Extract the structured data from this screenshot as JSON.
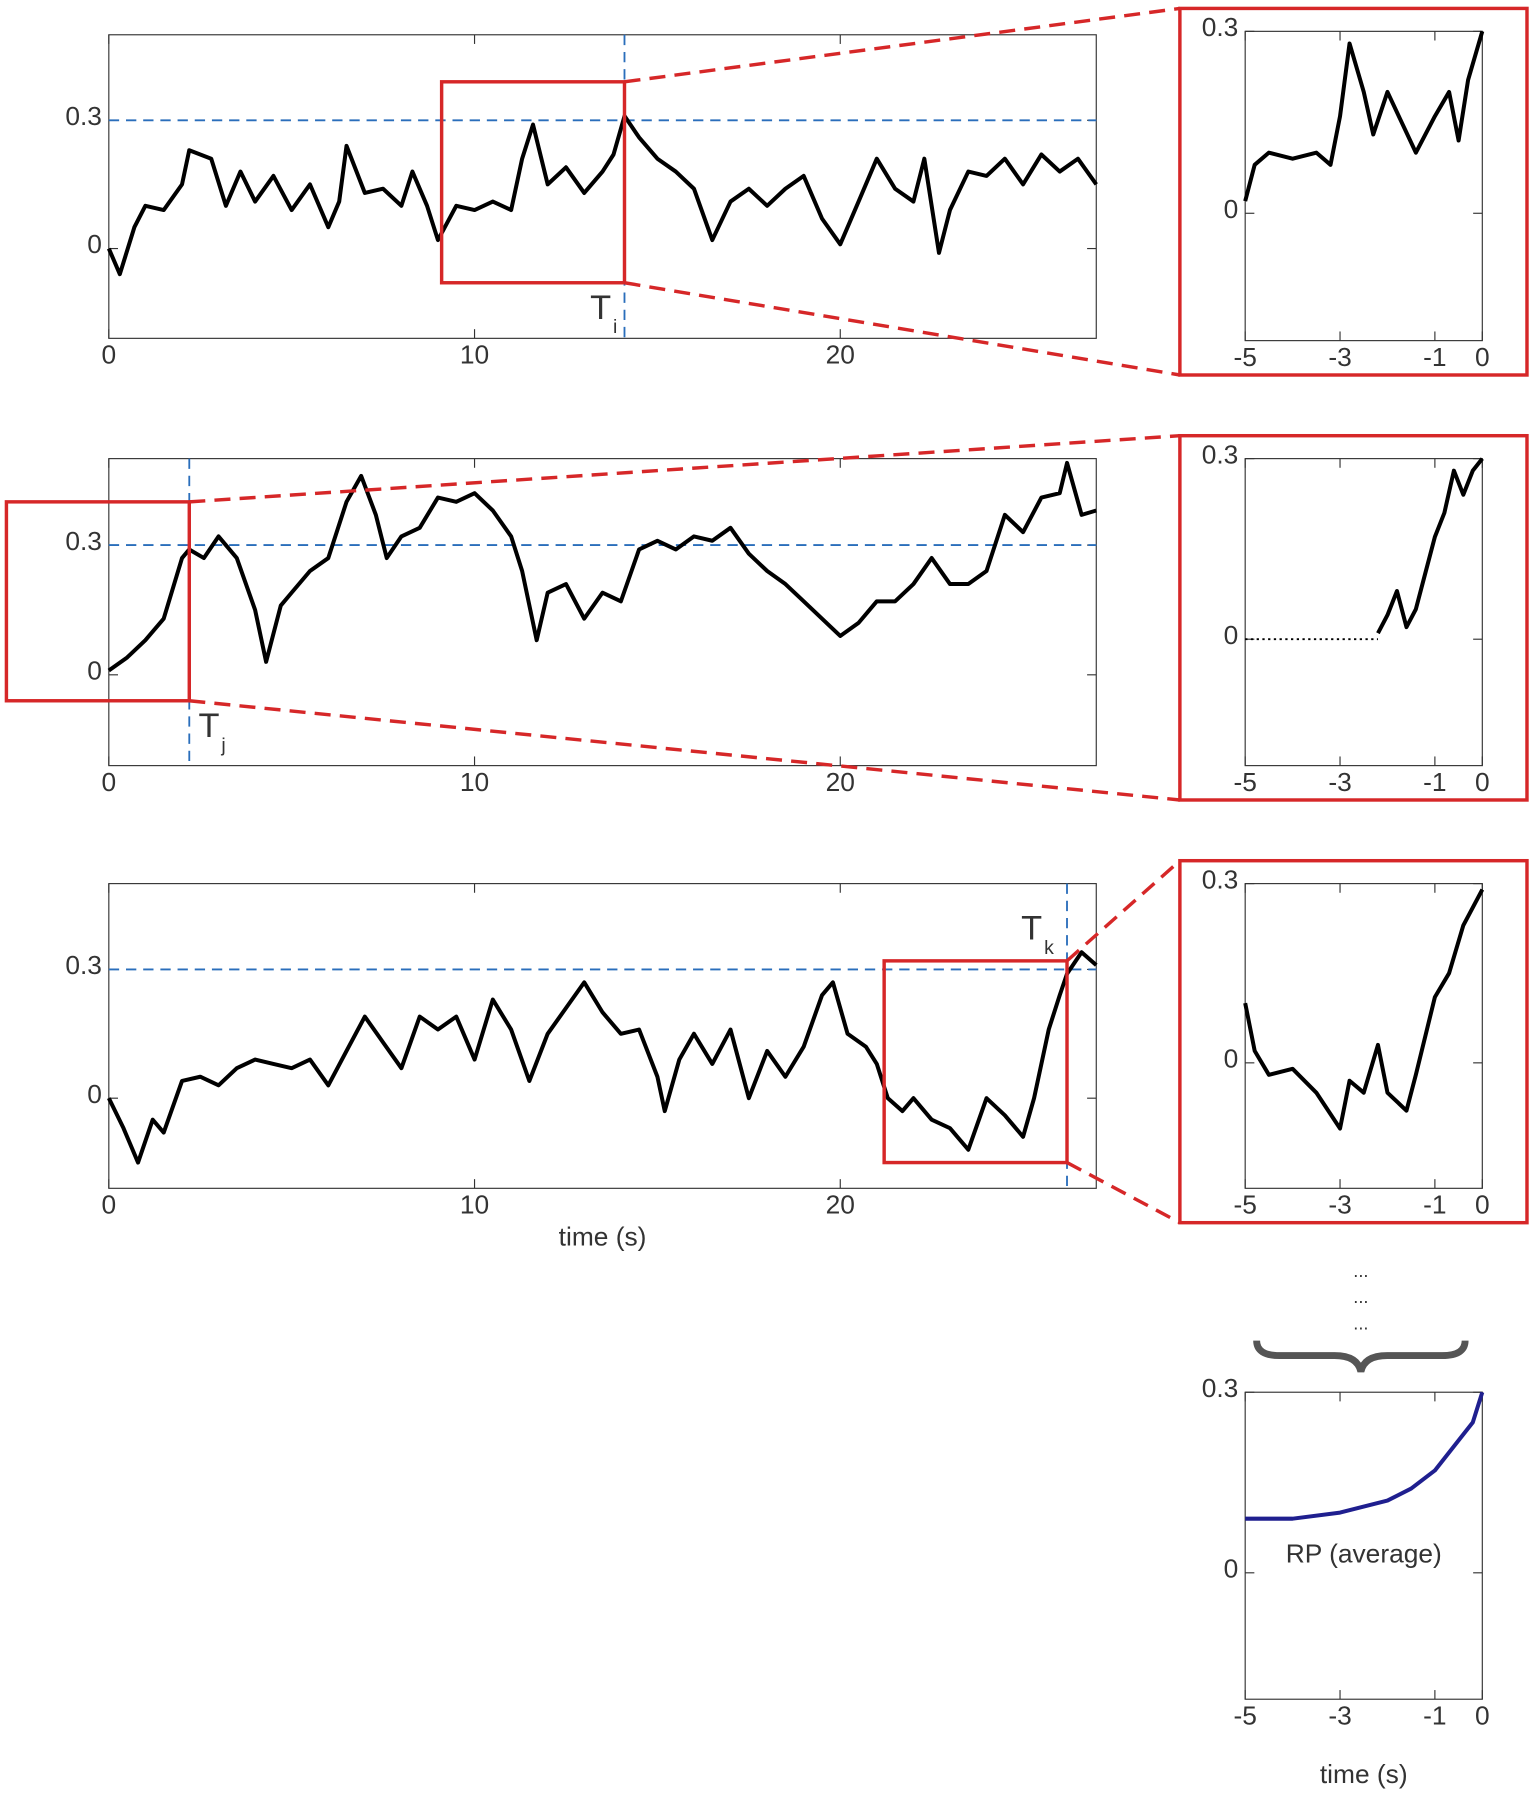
{
  "chart_data": [
    {
      "type": "line",
      "xlim": [
        0,
        27
      ],
      "ylim": [
        -0.21,
        0.5
      ],
      "xticks": [
        0,
        10,
        20
      ],
      "yticks": [
        0,
        0.3
      ],
      "threshold": 0.3,
      "marker": {
        "x": 14.1,
        "label": "T",
        "subscript": "i"
      },
      "window": {
        "xlim": [
          9.1,
          14.1
        ],
        "ylim": [
          -0.08,
          0.39
        ]
      },
      "series": [
        {
          "color": "#000000",
          "x": [
            0,
            0.3,
            0.7,
            1,
            1.5,
            2,
            2.2,
            2.8,
            3.2,
            3.6,
            4,
            4.5,
            5,
            5.5,
            6,
            6.3,
            6.5,
            7,
            7.5,
            8,
            8.3,
            8.7,
            9,
            9.5,
            10,
            10.5,
            11,
            11.3,
            11.6,
            12,
            12.5,
            13,
            13.5,
            13.8,
            14.1,
            14.5,
            15,
            15.5,
            16,
            16.5,
            17,
            17.5,
            18,
            18.5,
            19,
            19.5,
            20,
            20.5,
            21,
            21.5,
            22,
            22.3,
            22.7,
            23,
            23.5,
            24,
            24.5,
            25,
            25.5,
            26,
            26.5,
            27
          ],
          "values": [
            0,
            -0.06,
            0.05,
            0.1,
            0.09,
            0.15,
            0.23,
            0.21,
            0.1,
            0.18,
            0.11,
            0.17,
            0.09,
            0.15,
            0.05,
            0.11,
            0.24,
            0.13,
            0.14,
            0.1,
            0.18,
            0.1,
            0.02,
            0.1,
            0.09,
            0.11,
            0.09,
            0.21,
            0.29,
            0.15,
            0.19,
            0.13,
            0.18,
            0.22,
            0.31,
            0.26,
            0.21,
            0.18,
            0.14,
            0.02,
            0.11,
            0.14,
            0.1,
            0.14,
            0.17,
            0.07,
            0.01,
            0.11,
            0.21,
            0.14,
            0.11,
            0.21,
            -0.01,
            0.09,
            0.18,
            0.17,
            0.21,
            0.15,
            0.22,
            0.18,
            0.21,
            0.15
          ]
        }
      ]
    },
    {
      "type": "line",
      "xlim": [
        0,
        27
      ],
      "ylim": [
        -0.21,
        0.5
      ],
      "xticks": [
        0,
        10,
        20
      ],
      "yticks": [
        0,
        0.3
      ],
      "threshold": 0.3,
      "marker": {
        "x": 2.2,
        "label": "T",
        "subscript": "j"
      },
      "window": {
        "xlim": [
          -2.8,
          2.2
        ],
        "ylim": [
          -0.06,
          0.4
        ]
      },
      "series": [
        {
          "color": "#000000",
          "x": [
            0,
            0.5,
            1,
            1.5,
            2,
            2.2,
            2.6,
            3,
            3.5,
            4,
            4.3,
            4.7,
            5,
            5.5,
            6,
            6.5,
            6.9,
            7.3,
            7.6,
            8,
            8.5,
            9,
            9.5,
            10,
            10.5,
            11,
            11.3,
            11.7,
            12,
            12.5,
            13,
            13.5,
            14,
            14.5,
            15,
            15.5,
            16,
            16.5,
            17,
            17.5,
            18,
            18.5,
            19,
            19.5,
            20,
            20.5,
            21,
            21.5,
            22,
            22.5,
            23,
            23.5,
            24,
            24.5,
            25,
            25.5,
            26,
            26.2,
            26.6,
            27
          ],
          "values": [
            0.01,
            0.04,
            0.08,
            0.13,
            0.27,
            0.29,
            0.27,
            0.32,
            0.27,
            0.15,
            0.03,
            0.16,
            0.19,
            0.24,
            0.27,
            0.4,
            0.46,
            0.37,
            0.27,
            0.32,
            0.34,
            0.41,
            0.4,
            0.42,
            0.38,
            0.32,
            0.24,
            0.08,
            0.19,
            0.21,
            0.13,
            0.19,
            0.17,
            0.29,
            0.31,
            0.29,
            0.32,
            0.31,
            0.34,
            0.28,
            0.24,
            0.21,
            0.17,
            0.13,
            0.09,
            0.12,
            0.17,
            0.17,
            0.21,
            0.27,
            0.21,
            0.21,
            0.24,
            0.37,
            0.33,
            0.41,
            0.42,
            0.49,
            0.37,
            0.38
          ]
        }
      ]
    },
    {
      "type": "line",
      "xlim": [
        0,
        27
      ],
      "ylim": [
        -0.21,
        0.5
      ],
      "xticks": [
        0,
        10,
        20
      ],
      "yticks": [
        0,
        0.3
      ],
      "threshold": 0.3,
      "xlabel": "time (s)",
      "marker": {
        "x": 26.2,
        "label": "T",
        "subscript": "k"
      },
      "window": {
        "xlim": [
          21.2,
          26.2
        ],
        "ylim": [
          -0.15,
          0.32
        ]
      },
      "series": [
        {
          "color": "#000000",
          "x": [
            0,
            0.4,
            0.8,
            1.2,
            1.5,
            2,
            2.5,
            3,
            3.5,
            4,
            4.5,
            5,
            5.5,
            6,
            6.5,
            7,
            7.5,
            8,
            8.5,
            9,
            9.5,
            10,
            10.5,
            11,
            11.5,
            12,
            12.5,
            13,
            13.5,
            14,
            14.5,
            15,
            15.2,
            15.6,
            16,
            16.5,
            17,
            17.5,
            18,
            18.5,
            19,
            19.5,
            19.8,
            20.2,
            20.7,
            21,
            21.3,
            21.7,
            22,
            22.5,
            23,
            23.5,
            24,
            24.5,
            25,
            25.3,
            25.7,
            26,
            26.2,
            26.6,
            27
          ],
          "values": [
            0,
            -0.07,
            -0.15,
            -0.05,
            -0.08,
            0.04,
            0.05,
            0.03,
            0.07,
            0.09,
            0.08,
            0.07,
            0.09,
            0.03,
            0.11,
            0.19,
            0.13,
            0.07,
            0.19,
            0.16,
            0.19,
            0.09,
            0.23,
            0.16,
            0.04,
            0.15,
            0.21,
            0.27,
            0.2,
            0.15,
            0.16,
            0.05,
            -0.03,
            0.09,
            0.15,
            0.08,
            0.16,
            0,
            0.11,
            0.05,
            0.12,
            0.24,
            0.27,
            0.15,
            0.12,
            0.08,
            0,
            -0.03,
            0,
            -0.05,
            -0.07,
            -0.12,
            0,
            -0.04,
            -0.09,
            0,
            0.16,
            0.24,
            0.29,
            0.34,
            0.31
          ]
        }
      ]
    },
    {
      "type": "line",
      "xlim": [
        -5,
        0
      ],
      "ylim": [
        -0.21,
        0.3
      ],
      "xticks": [
        -5,
        -3,
        -1,
        0
      ],
      "yticks": [
        0,
        0.3
      ],
      "series": [
        {
          "color": "#000000",
          "x": [
            -5,
            -4.8,
            -4.5,
            -4,
            -3.5,
            -3.2,
            -3,
            -2.8,
            -2.5,
            -2.3,
            -2,
            -1.7,
            -1.4,
            -1,
            -0.7,
            -0.5,
            -0.3,
            0
          ],
          "values": [
            0.02,
            0.08,
            0.1,
            0.09,
            0.1,
            0.08,
            0.16,
            0.28,
            0.2,
            0.13,
            0.2,
            0.15,
            0.1,
            0.16,
            0.2,
            0.12,
            0.22,
            0.3
          ]
        }
      ]
    },
    {
      "type": "line",
      "xlim": [
        -5,
        0
      ],
      "ylim": [
        -0.21,
        0.3
      ],
      "xticks": [
        -5,
        -3,
        -1,
        0
      ],
      "yticks": [
        0,
        0.3
      ],
      "series": [
        {
          "color": "#000000",
          "style": "dotted",
          "x": [
            -5,
            -2.2
          ],
          "values": [
            0,
            0
          ]
        },
        {
          "color": "#000000",
          "x": [
            -2.2,
            -2,
            -1.8,
            -1.6,
            -1.4,
            -1.2,
            -1,
            -0.8,
            -0.6,
            -0.4,
            -0.2,
            0
          ],
          "values": [
            0.01,
            0.04,
            0.08,
            0.02,
            0.05,
            0.11,
            0.17,
            0.21,
            0.28,
            0.24,
            0.28,
            0.3
          ]
        }
      ]
    },
    {
      "type": "line",
      "xlim": [
        -5,
        0
      ],
      "ylim": [
        -0.21,
        0.3
      ],
      "xticks": [
        -5,
        -3,
        -1,
        0
      ],
      "yticks": [
        0,
        0.3
      ],
      "series": [
        {
          "color": "#000000",
          "x": [
            -5,
            -4.8,
            -4.5,
            -4,
            -3.5,
            -3,
            -2.8,
            -2.5,
            -2.2,
            -2,
            -1.6,
            -1.4,
            -1,
            -0.7,
            -0.4,
            0
          ],
          "values": [
            0.1,
            0.02,
            -0.02,
            -0.01,
            -0.05,
            -0.11,
            -0.03,
            -0.05,
            0.03,
            -0.05,
            -0.08,
            -0.02,
            0.11,
            0.15,
            0.23,
            0.29
          ]
        }
      ]
    },
    {
      "type": "line",
      "xlim": [
        -5,
        0
      ],
      "ylim": [
        -0.21,
        0.3
      ],
      "xticks": [
        -5,
        -3,
        -1,
        0
      ],
      "yticks": [
        0,
        0.3
      ],
      "xlabel": "time (s)",
      "annotation": "RP (average)",
      "series": [
        {
          "color": "#1f1f8f",
          "x": [
            -5,
            -4,
            -3,
            -2,
            -1.5,
            -1,
            -0.5,
            -0.2,
            0
          ],
          "values": [
            0.09,
            0.09,
            0.1,
            0.12,
            0.14,
            0.17,
            0.22,
            0.25,
            0.3
          ]
        }
      ]
    }
  ],
  "ellipsis": [
    "...",
    "...",
    "..."
  ]
}
